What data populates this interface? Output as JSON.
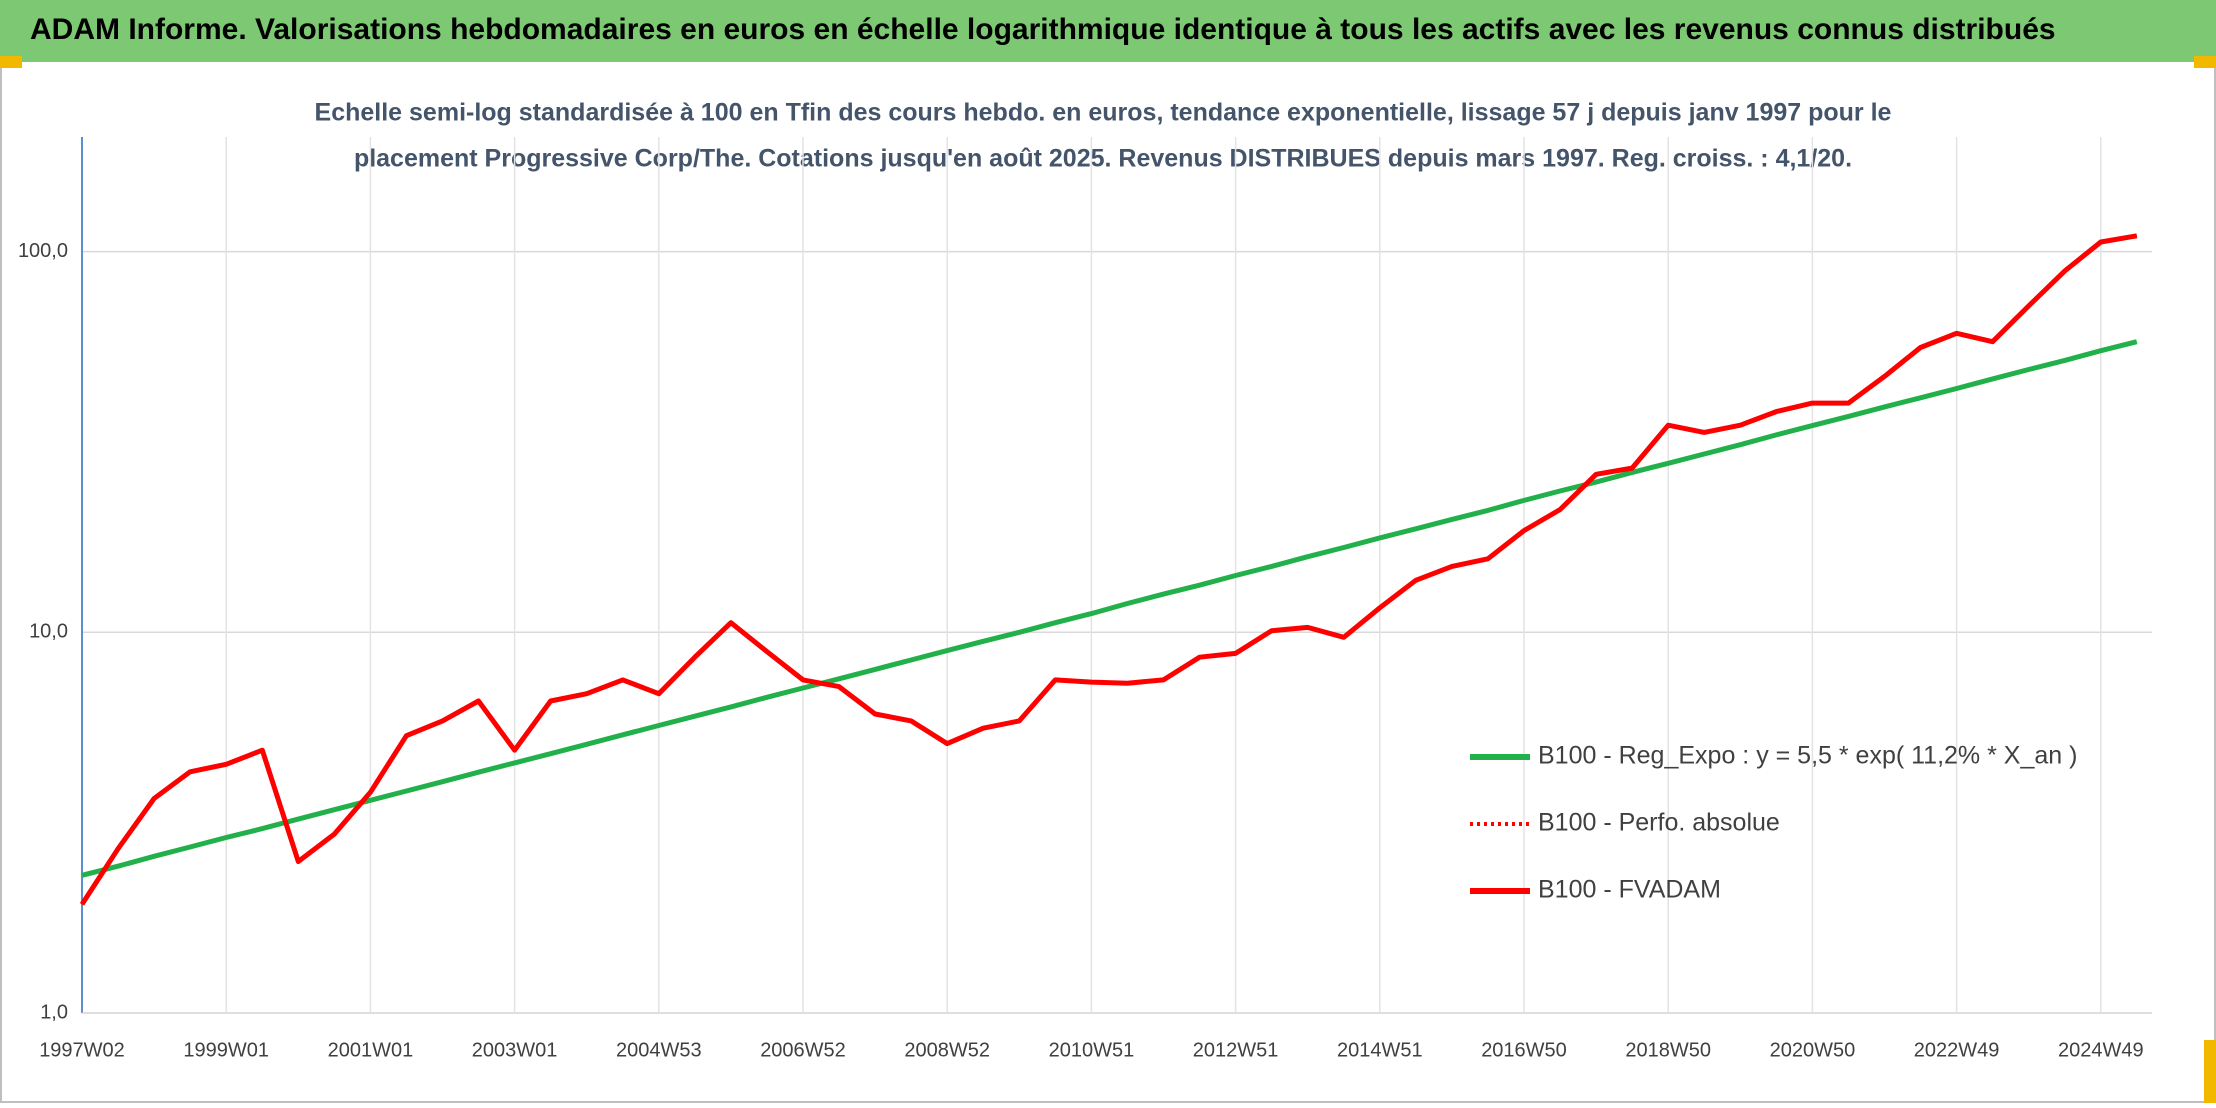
{
  "chart_data": {
    "type": "line",
    "title": "ADAM Informe. Valorisations hebdomadaires en euros en échelle logarithmique identique à tous les actifs avec les revenus connus distribués",
    "subtitle": [
      "Echelle semi-log standardisée à 100 en Tfin des cours hebdo. en euros, tendance exponentielle, lissage 57 j depuis janv 1997 pour le",
      "placement Progressive Corp/The. Cotations jusqu'en août 2025. Revenus DISTRIBUES depuis mars 1997. Reg. croiss. : 4,1/20."
    ],
    "categories": [
      "1997W02",
      null,
      null,
      null,
      "1999W01",
      null,
      null,
      null,
      "2001W01",
      null,
      null,
      null,
      "2003W01",
      null,
      null,
      null,
      "2004W53",
      null,
      null,
      null,
      "2006W52",
      null,
      null,
      null,
      "2008W52",
      null,
      null,
      null,
      "2010W51",
      null,
      null,
      null,
      "2012W51",
      null,
      null,
      null,
      "2014W51",
      null,
      null,
      null,
      "2016W50",
      null,
      null,
      null,
      "2018W50",
      null,
      null,
      null,
      "2020W50",
      null,
      null,
      null,
      "2022W49",
      null,
      null,
      null,
      "2024W49",
      null
    ],
    "log_scale": true,
    "grid": true,
    "ylim": [
      1,
      200
    ],
    "yticks": [
      {
        "value": 1,
        "label": "1,0"
      },
      {
        "value": 10,
        "label": "10,0"
      },
      {
        "value": 100,
        "label": "100,0"
      }
    ],
    "legend": "right",
    "series": [
      {
        "name": "B100 - Reg_Expo : y = 5,5 * exp( 11,2% *  X_an )",
        "color": "#22b04b",
        "style": "solid",
        "values": [
          2.3,
          2.43,
          2.58,
          2.73,
          2.89,
          3.05,
          3.23,
          3.42,
          3.62,
          3.83,
          4.05,
          4.29,
          4.54,
          4.8,
          5.08,
          5.38,
          5.69,
          6.02,
          6.37,
          6.75,
          7.14,
          7.55,
          7.99,
          8.46,
          8.95,
          9.47,
          10.0,
          10.6,
          11.2,
          11.9,
          12.6,
          13.3,
          14.1,
          14.9,
          15.8,
          16.7,
          17.7,
          18.7,
          19.8,
          20.9,
          22.2,
          23.5,
          24.8,
          26.3,
          27.8,
          29.4,
          31.1,
          33.0,
          34.9,
          36.9,
          39.1,
          41.3,
          43.7,
          46.3,
          49.0,
          51.8,
          54.9,
          58.0
        ]
      },
      {
        "name": "B100 - Perfo. absolue",
        "color": "#ff0000",
        "style": "dotted",
        "values": [
          1.93,
          2.7,
          3.66,
          4.3,
          4.5,
          4.9,
          2.5,
          2.95,
          3.8,
          5.35,
          5.85,
          6.6,
          4.9,
          6.6,
          6.9,
          7.5,
          6.9,
          8.6,
          10.6,
          8.9,
          7.5,
          7.2,
          6.1,
          5.85,
          5.1,
          5.6,
          5.85,
          7.5,
          7.4,
          7.35,
          7.5,
          8.6,
          8.8,
          10.1,
          10.3,
          9.7,
          11.6,
          13.7,
          14.9,
          15.6,
          18.5,
          21,
          26,
          27,
          35,
          33.5,
          35,
          38,
          40,
          40,
          47,
          56,
          61,
          58,
          72,
          89,
          106,
          110
        ]
      },
      {
        "name": "B100 - FVADAM",
        "color": "#ff0000",
        "style": "solid",
        "values": [
          1.93,
          2.7,
          3.66,
          4.3,
          4.5,
          4.9,
          2.5,
          2.95,
          3.8,
          5.35,
          5.85,
          6.6,
          4.9,
          6.6,
          6.9,
          7.5,
          6.9,
          8.6,
          10.6,
          8.9,
          7.5,
          7.2,
          6.1,
          5.85,
          5.1,
          5.6,
          5.85,
          7.5,
          7.4,
          7.35,
          7.5,
          8.6,
          8.8,
          10.1,
          10.3,
          9.7,
          11.6,
          13.7,
          14.9,
          15.6,
          18.5,
          21,
          26,
          27,
          35,
          33.5,
          35,
          38,
          40,
          40,
          47,
          56,
          61,
          58,
          72,
          89,
          106,
          110
        ]
      }
    ]
  }
}
